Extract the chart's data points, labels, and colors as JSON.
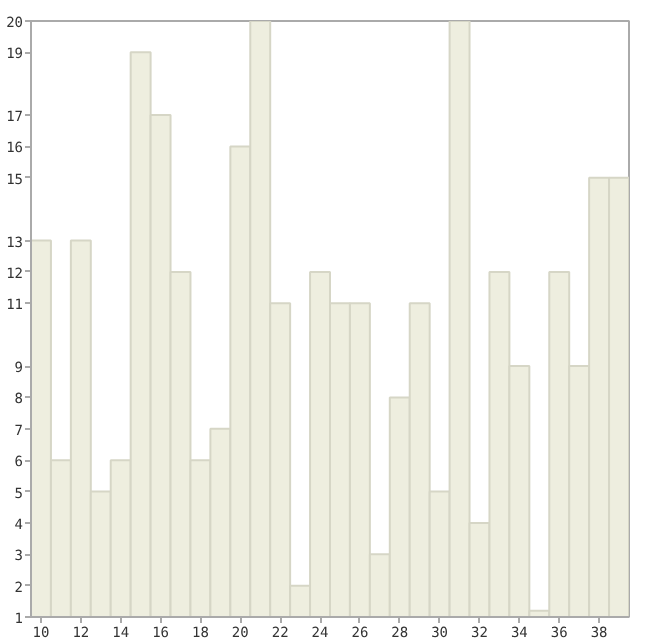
{
  "chart_data": {
    "type": "bar",
    "x": [
      10,
      11,
      12,
      13,
      14,
      15,
      16,
      17,
      18,
      19,
      20,
      21,
      22,
      23,
      24,
      25,
      26,
      27,
      28,
      29,
      30,
      31,
      32,
      33,
      34,
      35,
      36,
      37,
      38,
      39
    ],
    "values": [
      13,
      6,
      13,
      5,
      6,
      19,
      17,
      12,
      6,
      7,
      16,
      20,
      11,
      2,
      12,
      11,
      11,
      3,
      8,
      11,
      5,
      20,
      4,
      12,
      9,
      1.2,
      12,
      9,
      15,
      15
    ],
    "color": "#eeeedf",
    "xlim": [
      9.5,
      39.5
    ],
    "xticks": [
      10,
      12,
      14,
      16,
      18,
      20,
      22,
      24,
      26,
      28,
      30,
      32,
      34,
      36,
      38
    ],
    "ylim": [
      1,
      20
    ],
    "yticks": [
      1,
      2,
      3,
      4,
      5,
      6,
      7,
      8,
      9,
      11,
      12,
      13,
      15,
      16,
      17,
      19,
      20
    ],
    "grid": false
  }
}
